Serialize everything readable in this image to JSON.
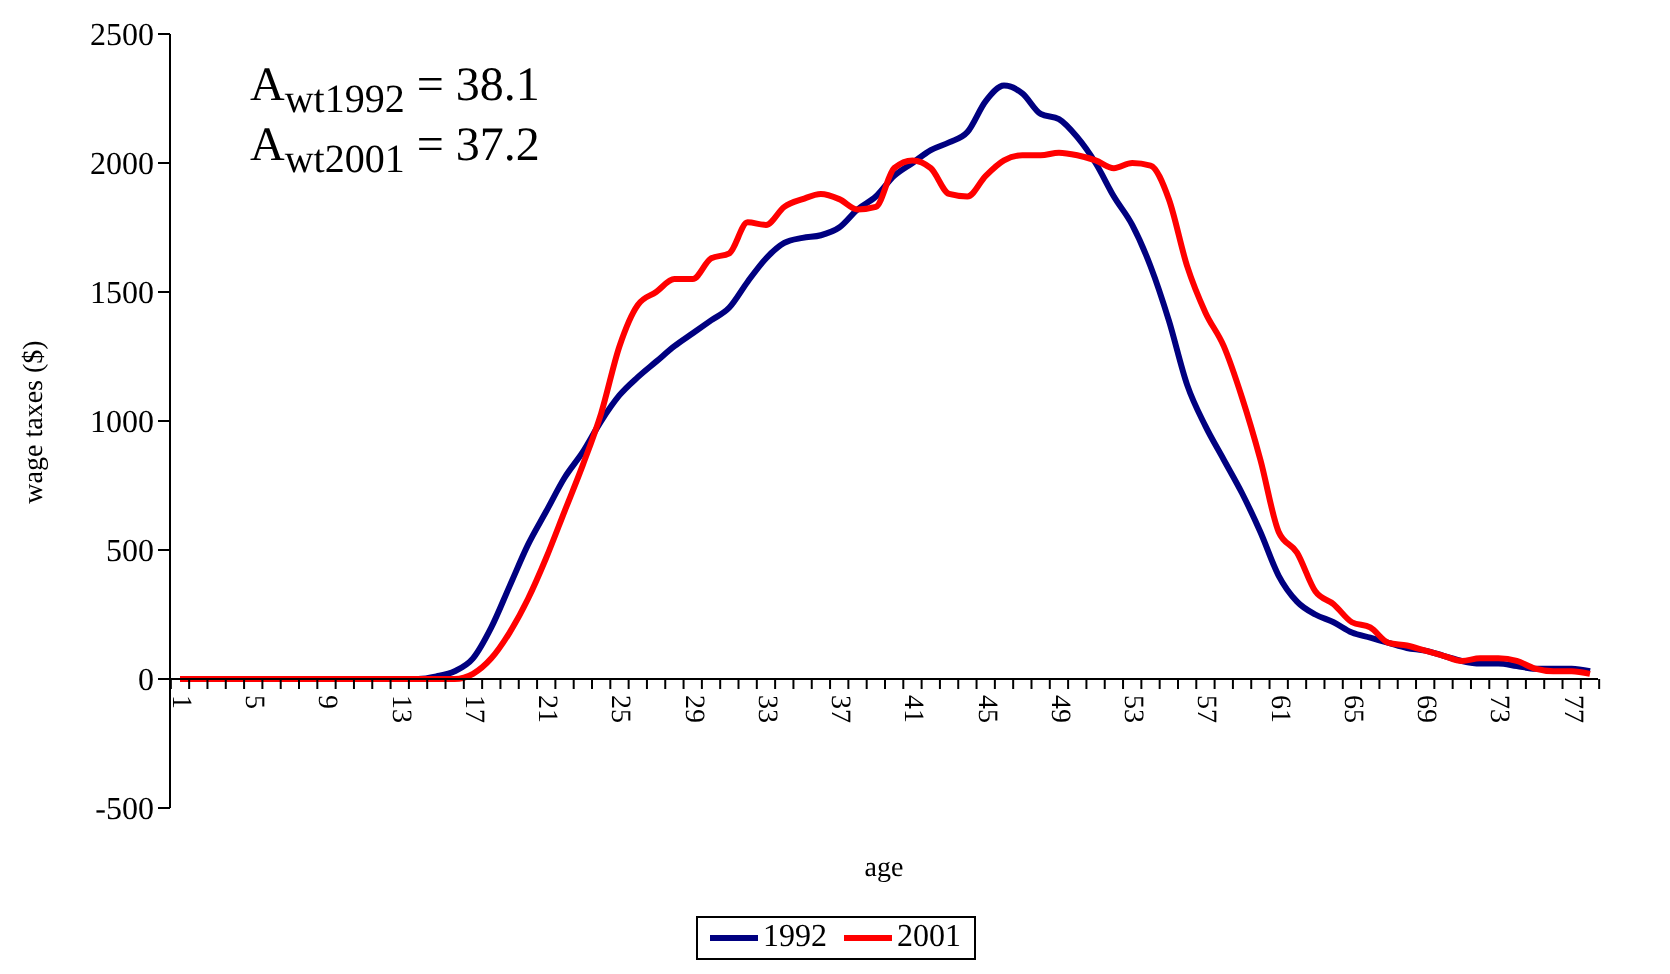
{
  "chart_data": {
    "type": "line",
    "xlabel": "age",
    "ylabel": "wage taxes ($)",
    "annotations": [
      "A$_{wt1992}$ = 38.1",
      "A$_{wt2001}$ = 37.2"
    ],
    "categories": [
      "1",
      null,
      null,
      null,
      "5",
      null,
      null,
      null,
      "9",
      null,
      null,
      null,
      "13",
      null,
      null,
      null,
      "17",
      null,
      null,
      null,
      "21",
      null,
      null,
      null,
      "25",
      null,
      null,
      null,
      "29",
      null,
      null,
      null,
      "33",
      null,
      null,
      null,
      "37",
      null,
      null,
      null,
      "41",
      null,
      null,
      null,
      "45",
      null,
      null,
      null,
      "49",
      null,
      null,
      null,
      "53",
      null,
      null,
      null,
      "57",
      null,
      null,
      null,
      "61",
      null,
      null,
      null,
      "65",
      null,
      null,
      null,
      "69",
      null,
      null,
      null,
      "73",
      null,
      null,
      null,
      "77",
      null
    ],
    "series": [
      {
        "name": "1992",
        "color": "#000080",
        "values": [
          null,
          null,
          null,
          null,
          null,
          null,
          null,
          null,
          null,
          null,
          null,
          null,
          0,
          0,
          10,
          30,
          80,
          200,
          360,
          520,
          650,
          780,
          880,
          1000,
          1100,
          1170,
          1230,
          1290,
          1340,
          1390,
          1440,
          1540,
          1630,
          1690,
          1710,
          1720,
          1750,
          1820,
          1870,
          1950,
          2000,
          2050,
          2080,
          2120,
          2240,
          2300,
          2270,
          2190,
          2170,
          2100,
          2000,
          1870,
          1760,
          1600,
          1390,
          1140,
          980,
          850,
          720,
          570,
          400,
          300,
          250,
          220,
          180,
          160,
          140,
          120,
          110,
          90,
          70,
          60,
          60,
          50,
          40,
          40,
          40,
          30
        ]
      },
      {
        "name": "2001",
        "color": "#ff0000",
        "values": [
          0,
          0,
          0,
          0,
          0,
          0,
          0,
          0,
          0,
          0,
          0,
          0,
          0,
          0,
          0,
          0,
          20,
          80,
          180,
          310,
          470,
          650,
          830,
          1030,
          1290,
          1450,
          1500,
          1550,
          1550,
          1630,
          1650,
          1770,
          1760,
          1830,
          1860,
          1880,
          1860,
          1820,
          1830,
          1980,
          2010,
          1980,
          1880,
          1870,
          1950,
          2010,
          2030,
          2030,
          2040,
          2030,
          2010,
          1980,
          2000,
          1990,
          1860,
          1600,
          1420,
          1290,
          1090,
          850,
          570,
          490,
          340,
          290,
          220,
          200,
          140,
          130,
          110,
          90,
          70,
          80,
          80,
          70,
          40,
          30,
          30,
          20
        ]
      }
    ],
    "ylim": [
      -500,
      2500
    ],
    "yticks": [
      -500,
      0,
      500,
      1000,
      1500,
      2000,
      2500
    ],
    "grid": false,
    "legend": "bottom",
    "marker": "none",
    "line_style": "solid"
  }
}
